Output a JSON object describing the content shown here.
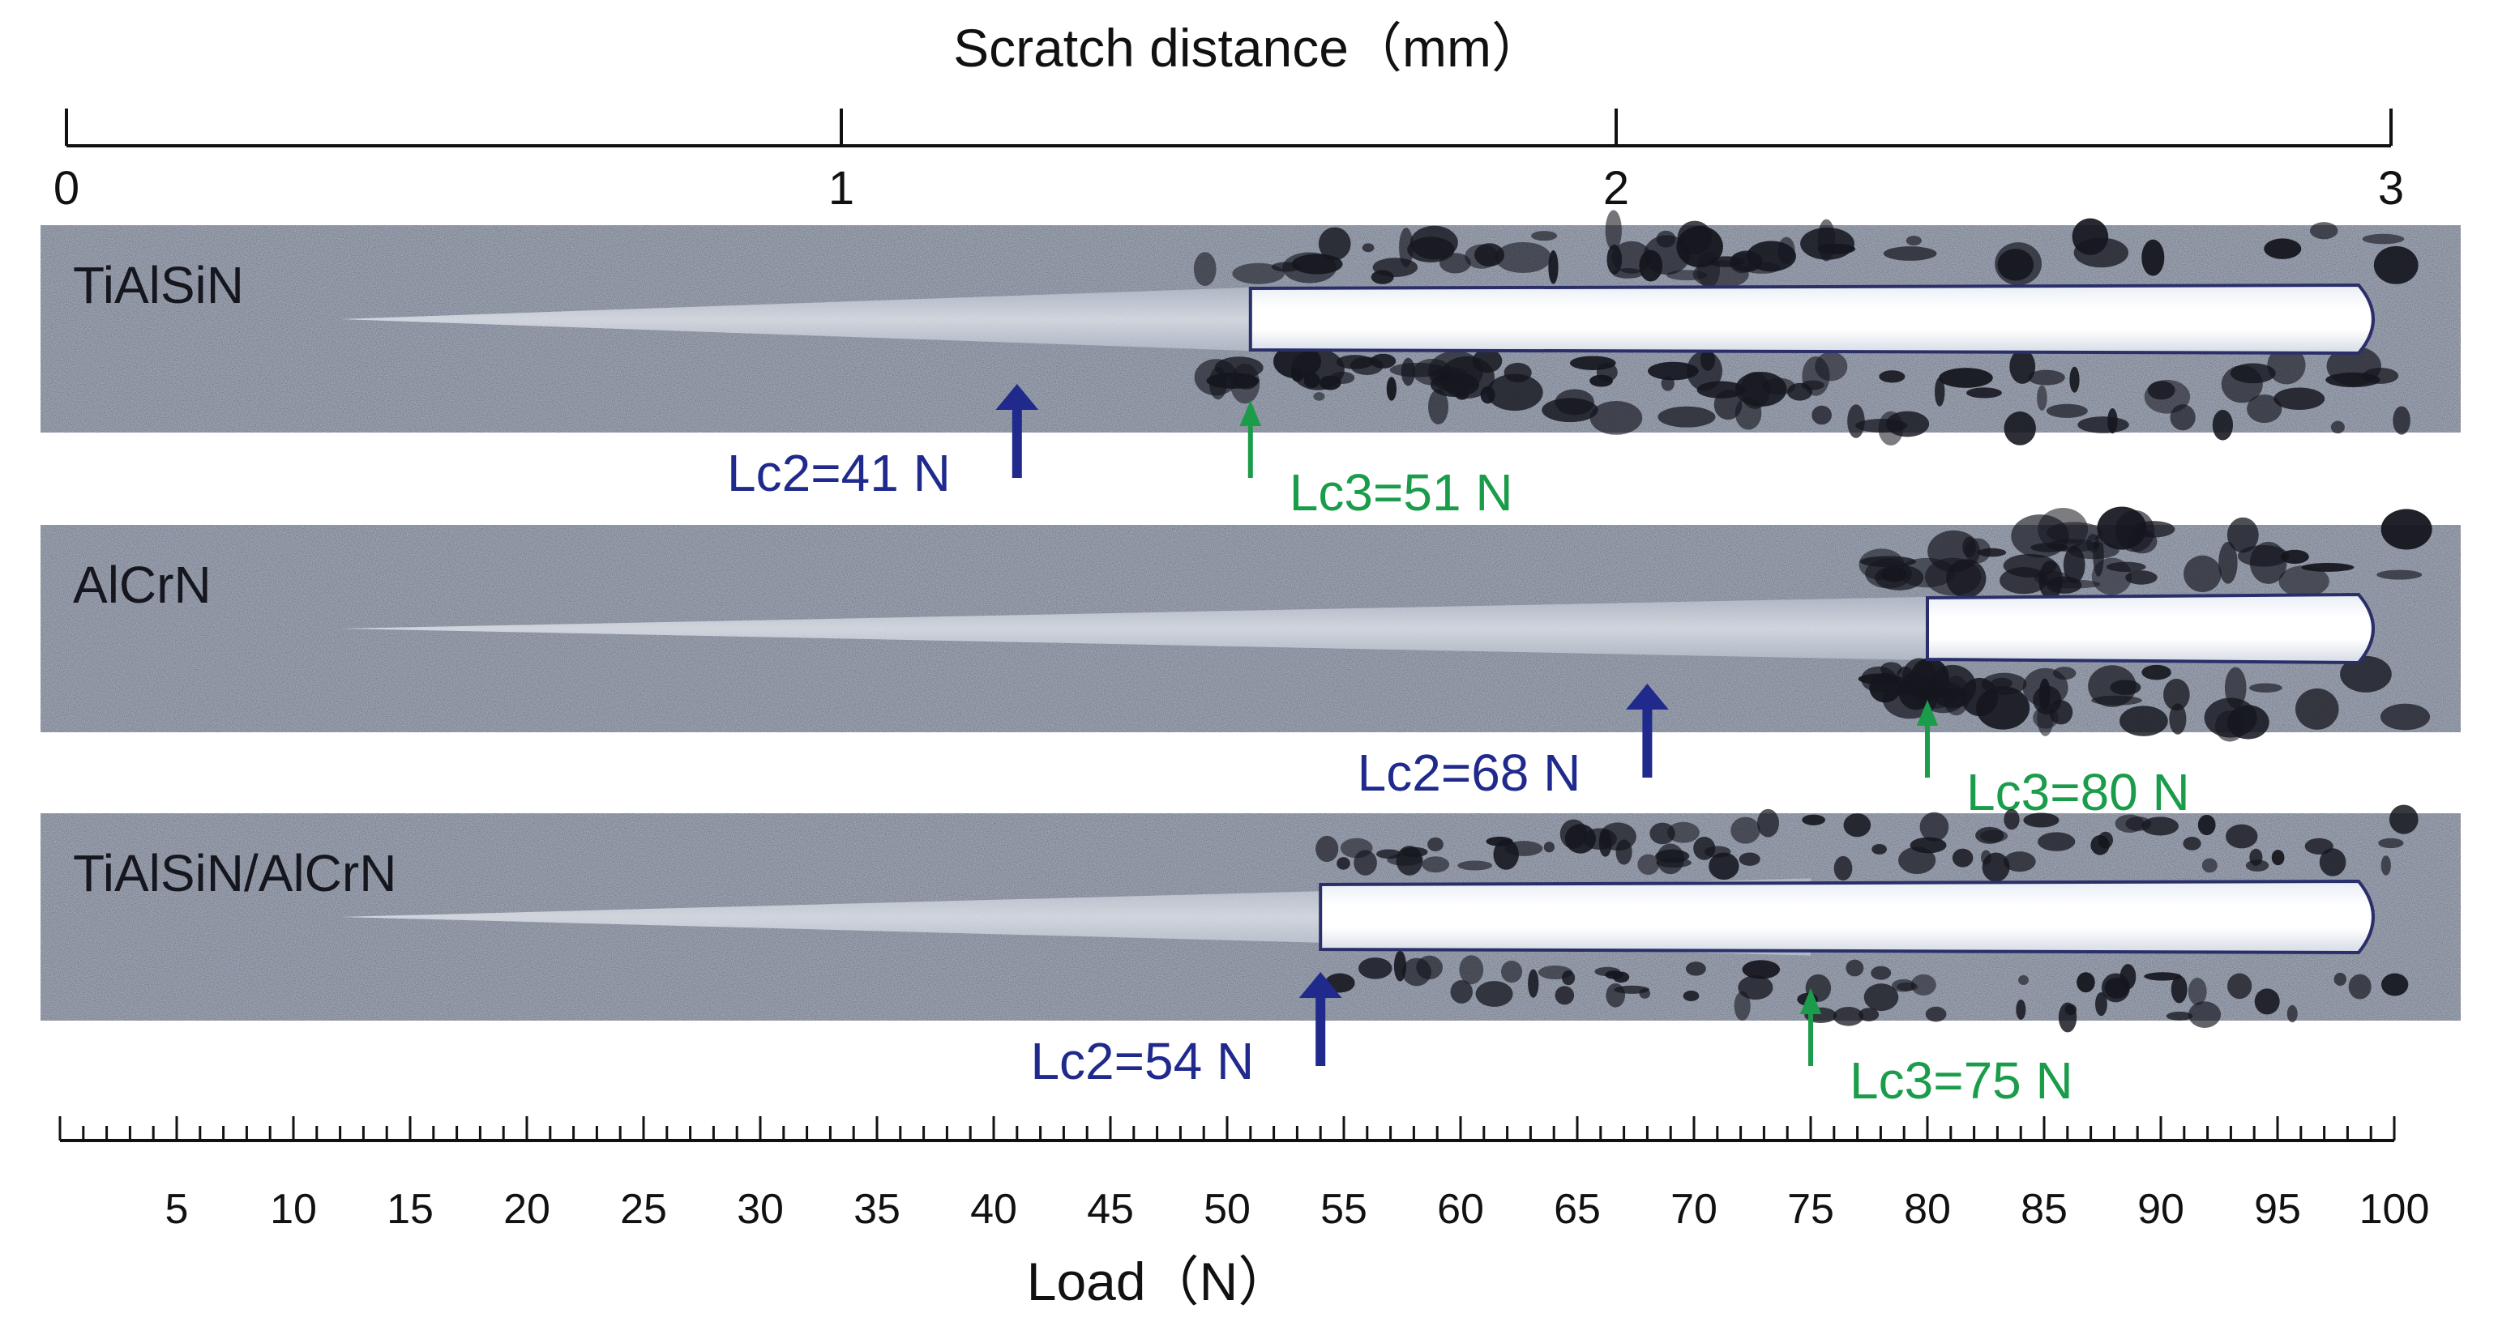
{
  "top_axis": {
    "title": "Scratch distance（mm）",
    "ticks": [
      {
        "value": 0,
        "label": "0"
      },
      {
        "value": 1,
        "label": "1"
      },
      {
        "value": 2,
        "label": "2"
      },
      {
        "value": 3,
        "label": "3"
      }
    ],
    "range": [
      0,
      3
    ]
  },
  "bottom_axis": {
    "title": "Load（N）",
    "range": [
      0,
      100
    ],
    "minor_step": 1,
    "labels": [
      "5",
      "10",
      "15",
      "20",
      "25",
      "30",
      "35",
      "40",
      "45",
      "50",
      "55",
      "60",
      "65",
      "70",
      "75",
      "80",
      "85",
      "90",
      "95",
      "100"
    ]
  },
  "colors": {
    "lc2": "#1f2a8c",
    "lc3": "#1a9c4a",
    "axis": "#111111",
    "substrate": "#9ca4b2",
    "track": "#dde3ea",
    "bright": "#ffffff",
    "debris": "#15161e"
  },
  "panels": [
    {
      "name": "TiAlSiN",
      "lc2": {
        "load": 41,
        "label": "Lc2=41 N"
      },
      "lc3": {
        "load": 51,
        "label": "Lc3=51 N"
      }
    },
    {
      "name": "AlCrN",
      "lc2": {
        "load": 68,
        "label": "Lc2=68 N"
      },
      "lc3": {
        "load": 80,
        "label": "Lc3=80 N"
      }
    },
    {
      "name": "TiAlSiN/AlCrN",
      "lc2": {
        "load": 54,
        "label": "Lc2=54 N"
      },
      "lc3": {
        "load": 75,
        "label": "Lc3=75 N"
      }
    }
  ]
}
